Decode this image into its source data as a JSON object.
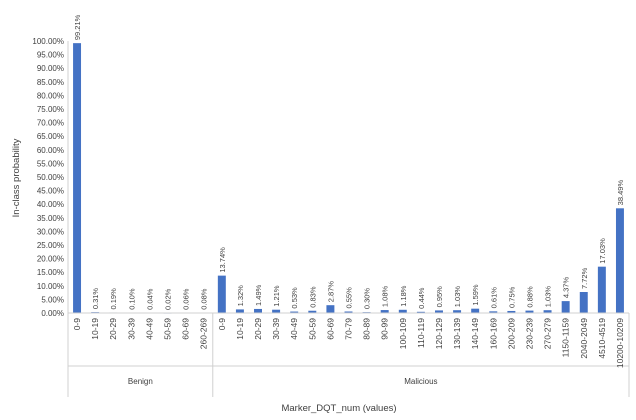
{
  "chart_data": {
    "type": "bar",
    "title": "",
    "xlabel": "Marker_DQT_num (values)",
    "ylabel": "In-class probability",
    "ylim": [
      0,
      100
    ],
    "ytick_step": 5,
    "bar_color": "#4472C4",
    "grid": false,
    "legend": "none",
    "groups": [
      {
        "name": "Benign",
        "categories": [
          "0-9",
          "10-19",
          "20-29",
          "30-39",
          "40-49",
          "50-59",
          "60-69",
          "260-269"
        ],
        "values": [
          99.21,
          0.31,
          0.19,
          0.1,
          0.04,
          0.02,
          0.06,
          0.08
        ],
        "labels": [
          "99.21%",
          "0.31%",
          "0.19%",
          "0.10%",
          "0.04%",
          "0.02%",
          "0.06%",
          "0.08%"
        ]
      },
      {
        "name": "Malicious",
        "categories": [
          "0-9",
          "10-19",
          "20-29",
          "30-39",
          "40-49",
          "50-59",
          "60-69",
          "70-79",
          "80-89",
          "90-99",
          "100-109",
          "110-119",
          "120-129",
          "130-139",
          "140-149",
          "160-169",
          "200-209",
          "230-239",
          "270-279",
          "1150-1159",
          "2040-2049",
          "4510-4519",
          "10200-10209"
        ],
        "values": [
          13.74,
          1.32,
          1.49,
          1.21,
          0.53,
          0.83,
          2.87,
          0.55,
          0.3,
          1.08,
          1.18,
          0.44,
          0.95,
          1.03,
          1.59,
          0.61,
          0.75,
          0.88,
          1.03,
          4.37,
          7.72,
          17.03,
          38.49
        ],
        "labels": [
          "13.74%",
          "1.32%",
          "1.49%",
          "1.21%",
          "0.53%",
          "0.83%",
          "2.87%",
          "0.55%",
          "0.30%",
          "1.08%",
          "1.18%",
          "0.44%",
          "0.95%",
          "1.03%",
          "1.59%",
          "0.61%",
          "0.75%",
          "0.88%",
          "1.03%",
          "4.37%",
          "7.72%",
          "17.03%",
          "38.49%"
        ]
      }
    ]
  }
}
